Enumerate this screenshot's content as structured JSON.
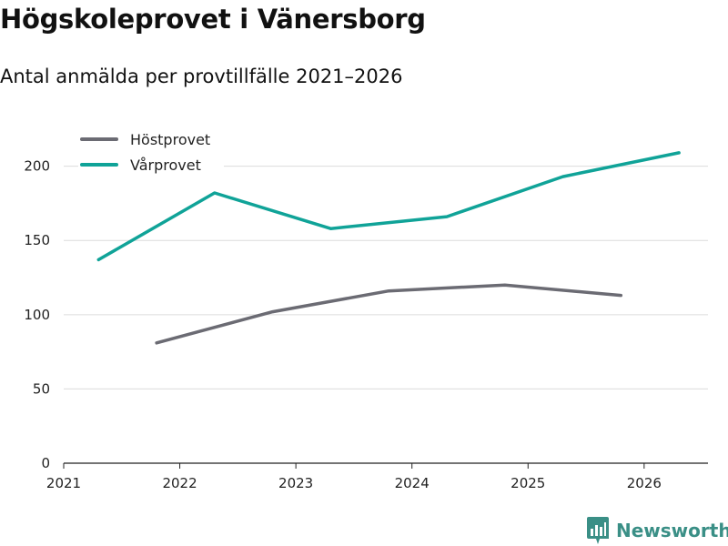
{
  "header": {
    "title": "Högskoleprovet i Vänersborg",
    "subtitle": "Antal anmälda per provtillfälle 2021–2026"
  },
  "chart_data": {
    "type": "line",
    "title": "Högskoleprovet i Vänersborg",
    "subtitle": "Antal anmälda per provtillfälle 2021–2026",
    "xlabel": "",
    "ylabel": "",
    "xlim": [
      2021,
      2026.55
    ],
    "ylim": [
      0,
      220
    ],
    "x_ticks": [
      "2021",
      "2022",
      "2023",
      "2024",
      "2025",
      "2026"
    ],
    "y_ticks": [
      "0",
      "50",
      "100",
      "150",
      "200"
    ],
    "grid": true,
    "legend_position": "top-left",
    "series": [
      {
        "name": "Höstprovet",
        "color": "#6b6b73",
        "x": [
          2021.8,
          2022.8,
          2023.8,
          2024.8,
          2025.8
        ],
        "values": [
          81,
          102,
          116,
          120,
          113
        ]
      },
      {
        "name": "Vårprovet",
        "color": "#10a398",
        "x": [
          2021.3,
          2022.3,
          2023.3,
          2024.3,
          2025.3,
          2026.3
        ],
        "values": [
          137,
          182,
          158,
          166,
          193,
          209
        ]
      }
    ]
  },
  "footer": {
    "brand": "Newsworthy",
    "brand_color": "#3a8f86"
  }
}
